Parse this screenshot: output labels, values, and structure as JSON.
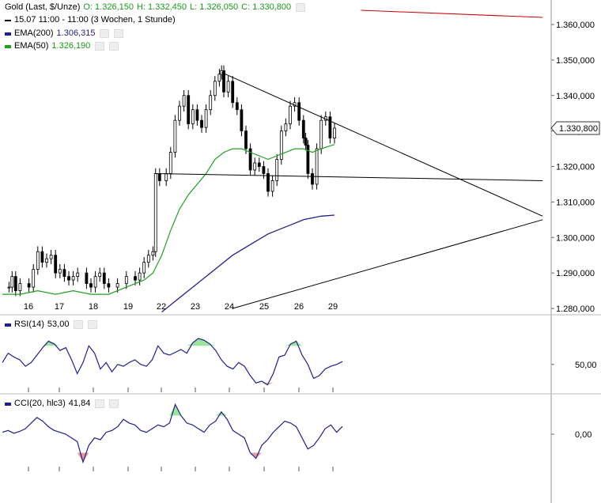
{
  "header": {
    "instrument": "Gold (Last, $/Unze)",
    "open_label": "O: 1.326,150",
    "high_label": "H: 1.332,450",
    "low_label": "L: 1.326,050",
    "close_label": "C: 1.330,800",
    "period_label": "15.07 11:00 - 11:00 (3 Wochen, 1 Stunde)",
    "ema200_label": "EMA(200)",
    "ema200_value": "1.306,315",
    "ema50_label": "EMA(50)",
    "ema50_value": "1.326,190",
    "rsi_label": "RSI(14)",
    "rsi_value": "53,00",
    "cci_label": "CCI(20, hlc3)",
    "cci_value": "41,84",
    "last_price_tag": "1.330,800"
  },
  "colors": {
    "candles": "#000000",
    "ema200": "#1f1f8f",
    "ema50": "#1fa01f",
    "trendlines": "#000000",
    "red_line": "#cc0000",
    "rsi_line": "#1f1f8f",
    "fill_positive": "#90e090",
    "fill_negative": "#e09090"
  },
  "chart_data": [
    {
      "type": "candlestick",
      "x_tick_labels": [
        "16",
        "17",
        "18",
        "19",
        "22",
        "23",
        "24",
        "25",
        "26",
        "29"
      ],
      "y_tick_labels": [
        "1.280,000",
        "1.290,000",
        "1.300,000",
        "1.310,000",
        "1.320,000",
        "1.330,000",
        "1.340,000",
        "1.350,000",
        "1.360,000"
      ],
      "ylim": [
        1280,
        1364
      ],
      "ohlc_close_path": [
        [
          0,
          1286
        ],
        [
          1.5,
          1286
        ],
        [
          2.2,
          1289
        ],
        [
          3,
          1285
        ],
        [
          4,
          1287
        ],
        [
          6,
          1286
        ],
        [
          7,
          1291
        ],
        [
          8,
          1296
        ],
        [
          9,
          1293
        ],
        [
          10,
          1294
        ],
        [
          11,
          1295
        ],
        [
          12,
          1290
        ],
        [
          13,
          1291
        ],
        [
          14,
          1289
        ],
        [
          15,
          1288
        ],
        [
          16,
          1289
        ],
        [
          17,
          1290
        ],
        [
          19,
          1287
        ],
        [
          20,
          1286
        ],
        [
          21,
          1289
        ],
        [
          22,
          1290
        ],
        [
          23,
          1287
        ],
        [
          24,
          1286
        ],
        [
          26,
          1287
        ],
        [
          28,
          1289
        ],
        [
          30,
          1288
        ],
        [
          31,
          1290
        ],
        [
          32,
          1293
        ],
        [
          33,
          1295
        ],
        [
          34,
          1296
        ],
        [
          34.6,
          1318
        ],
        [
          35.5,
          1316
        ],
        [
          37,
          1318
        ],
        [
          38,
          1324
        ],
        [
          39,
          1333
        ],
        [
          40,
          1337
        ],
        [
          41,
          1340
        ],
        [
          42,
          1332
        ],
        [
          43,
          1336
        ],
        [
          44,
          1333
        ],
        [
          45,
          1331
        ],
        [
          46,
          1336
        ],
        [
          47,
          1340
        ],
        [
          48,
          1344
        ],
        [
          49,
          1346
        ],
        [
          49.5,
          1347
        ],
        [
          50,
          1341
        ],
        [
          51,
          1344
        ],
        [
          52,
          1338
        ],
        [
          53,
          1336
        ],
        [
          54,
          1330
        ],
        [
          55,
          1325
        ],
        [
          56,
          1319
        ],
        [
          57,
          1321
        ],
        [
          58,
          1320
        ],
        [
          59,
          1318
        ],
        [
          60,
          1313
        ],
        [
          61,
          1316
        ],
        [
          62,
          1322
        ],
        [
          63,
          1330
        ],
        [
          64,
          1332
        ],
        [
          65,
          1337
        ],
        [
          66,
          1338
        ],
        [
          67,
          1333
        ],
        [
          68,
          1328
        ],
        [
          68.5,
          1326
        ],
        [
          69,
          1318
        ],
        [
          70,
          1315
        ],
        [
          71,
          1325
        ],
        [
          72,
          1333
        ],
        [
          73,
          1334
        ],
        [
          74,
          1328
        ],
        [
          75,
          1330.8
        ]
      ],
      "ema200": [
        [
          36,
          1279
        ],
        [
          40,
          1283
        ],
        [
          44,
          1287
        ],
        [
          48,
          1291
        ],
        [
          52,
          1295
        ],
        [
          56,
          1298
        ],
        [
          60,
          1301
        ],
        [
          64,
          1303
        ],
        [
          68,
          1305
        ],
        [
          72,
          1306
        ],
        [
          75,
          1306.3
        ]
      ],
      "ema50": [
        [
          0,
          1284
        ],
        [
          4,
          1284
        ],
        [
          8,
          1285
        ],
        [
          12,
          1284
        ],
        [
          16,
          1285
        ],
        [
          20,
          1284
        ],
        [
          24,
          1284
        ],
        [
          28,
          1286
        ],
        [
          32,
          1288
        ],
        [
          34,
          1290
        ],
        [
          36,
          1295
        ],
        [
          38,
          1302
        ],
        [
          40,
          1308
        ],
        [
          42,
          1312
        ],
        [
          44,
          1315
        ],
        [
          46,
          1318
        ],
        [
          48,
          1322
        ],
        [
          50,
          1324
        ],
        [
          52,
          1325
        ],
        [
          54,
          1325
        ],
        [
          56,
          1324
        ],
        [
          58,
          1323
        ],
        [
          60,
          1322
        ],
        [
          62,
          1323
        ],
        [
          64,
          1324
        ],
        [
          66,
          1325
        ],
        [
          68,
          1325
        ],
        [
          70,
          1324
        ],
        [
          72,
          1325
        ],
        [
          75,
          1326.2
        ]
      ],
      "trendlines": [
        {
          "from": [
            49.5,
            1346.5
          ],
          "to": [
            122,
            1306
          ]
        },
        {
          "from": [
            34.5,
            1318
          ],
          "to": [
            122,
            1316
          ]
        },
        {
          "from": [
            52,
            1280
          ],
          "to": [
            122,
            1305
          ]
        },
        {
          "from": [
            81,
            1364
          ],
          "to": [
            122,
            1362
          ]
        }
      ]
    },
    {
      "type": "line",
      "name": "RSI(14)",
      "y_tick_labels": [
        "50,00"
      ],
      "ylim": [
        20,
        100
      ],
      "reference_value": 53,
      "values": [
        52,
        62,
        58,
        55,
        48,
        52,
        60,
        68,
        75,
        72,
        65,
        68,
        55,
        40,
        52,
        70,
        62,
        45,
        52,
        42,
        50,
        48,
        52,
        55,
        50,
        48,
        55,
        70,
        62,
        60,
        63,
        66,
        62,
        73,
        78,
        76,
        72,
        65,
        55,
        48,
        45,
        52,
        48,
        38,
        30,
        32,
        28,
        40,
        58,
        60,
        72,
        75,
        60,
        50,
        35,
        38,
        45,
        48,
        50,
        53
      ]
    },
    {
      "type": "line",
      "name": "CCI(20, hlc3)",
      "y_tick_labels": [
        "0,00"
      ],
      "ylim": [
        -200,
        200
      ],
      "reference_value": 0,
      "values": [
        10,
        20,
        5,
        15,
        30,
        60,
        90,
        70,
        40,
        20,
        10,
        0,
        -20,
        -40,
        -150,
        -60,
        -20,
        -30,
        10,
        20,
        40,
        80,
        60,
        50,
        20,
        10,
        30,
        50,
        40,
        60,
        160,
        100,
        60,
        50,
        30,
        10,
        50,
        70,
        120,
        80,
        20,
        0,
        -20,
        -100,
        -130,
        -60,
        -30,
        10,
        40,
        70,
        60,
        40,
        -20,
        -80,
        -60,
        -20,
        30,
        50,
        10,
        41.84
      ]
    }
  ]
}
